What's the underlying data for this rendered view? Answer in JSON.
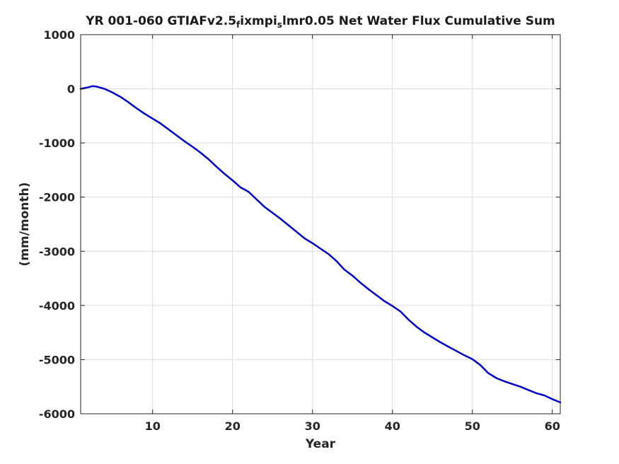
{
  "chart_data": {
    "type": "line",
    "title": {
      "parts": [
        {
          "text": "YR 001-060 GTIAFv2.5",
          "sub": false
        },
        {
          "text": "f",
          "sub": true
        },
        {
          "text": "ixmpi",
          "sub": false
        },
        {
          "text": "s",
          "sub": true
        },
        {
          "text": "lmr0.05 Net Water Flux Cumulative Sum",
          "sub": false
        }
      ]
    },
    "xlabel": "Year",
    "ylabel": "(mm/month)",
    "xlim": [
      1,
      61
    ],
    "ylim": [
      -6000,
      1000
    ],
    "xticks": [
      10,
      20,
      30,
      40,
      50,
      60
    ],
    "yticks": [
      1000,
      0,
      -1000,
      -2000,
      -3000,
      -4000,
      -5000,
      -6000
    ],
    "grid": true,
    "line_color": "#0000cc",
    "series": [
      {
        "x": [
          1,
          2,
          2.5,
          3,
          4,
          5,
          6,
          7,
          8,
          9,
          10,
          11,
          12,
          13,
          14,
          15,
          16,
          17,
          18,
          19,
          20,
          21,
          22,
          23,
          24,
          25,
          26,
          27,
          28,
          29,
          30,
          31,
          32,
          33,
          34,
          35,
          36,
          37,
          38,
          39,
          40,
          41,
          42,
          43,
          44,
          45,
          46,
          47,
          48,
          49,
          50,
          51,
          52,
          53,
          54,
          55,
          56,
          57,
          58,
          59,
          60,
          61
        ],
        "values": [
          0,
          30,
          50,
          40,
          0,
          -70,
          -150,
          -250,
          -360,
          -460,
          -550,
          -640,
          -750,
          -860,
          -970,
          -1070,
          -1180,
          -1300,
          -1440,
          -1570,
          -1690,
          -1820,
          -1900,
          -2040,
          -2180,
          -2290,
          -2400,
          -2520,
          -2640,
          -2760,
          -2850,
          -2950,
          -3050,
          -3180,
          -3340,
          -3450,
          -3580,
          -3700,
          -3810,
          -3920,
          -4010,
          -4110,
          -4260,
          -4390,
          -4500,
          -4590,
          -4680,
          -4760,
          -4840,
          -4920,
          -4990,
          -5100,
          -5250,
          -5340,
          -5400,
          -5450,
          -5500,
          -5560,
          -5620,
          -5660,
          -5730,
          -5790
        ]
      }
    ]
  }
}
